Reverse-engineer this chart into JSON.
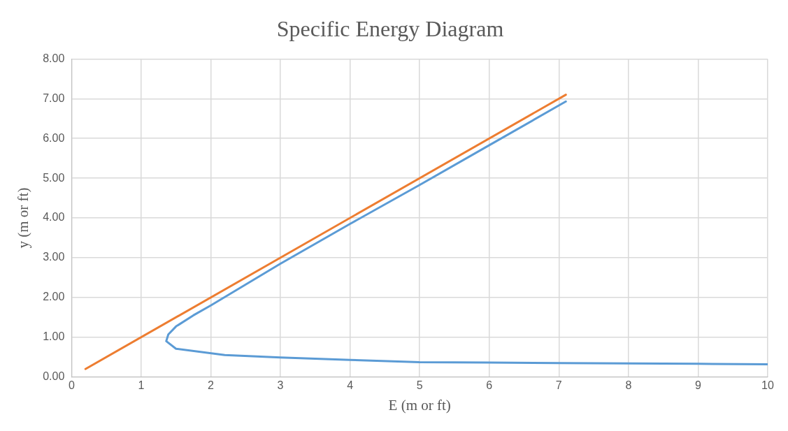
{
  "chart_data": {
    "type": "line",
    "title": "Specific Energy Diagram",
    "xlabel": "E (m or ft)",
    "ylabel": "y (m or ft)",
    "xlim": [
      0,
      10
    ],
    "xticks": [
      0,
      1,
      2,
      3,
      4,
      5,
      6,
      7,
      8,
      9,
      10
    ],
    "ylim": [
      0,
      8
    ],
    "yticks": [
      {
        "value": 0,
        "label": "0.00"
      },
      {
        "value": 1,
        "label": "1.00"
      },
      {
        "value": 2,
        "label": "2.00"
      },
      {
        "value": 3,
        "label": "3.00"
      },
      {
        "value": 4,
        "label": "4.00"
      },
      {
        "value": 5,
        "label": "5.00"
      },
      {
        "value": 6,
        "label": "6.00"
      },
      {
        "value": 7,
        "label": "7.00"
      },
      {
        "value": 8,
        "label": "8.00"
      }
    ],
    "grid": true,
    "legend": false,
    "marker": "none",
    "line_style": "solid",
    "series": [
      {
        "color": "#5b9bd5",
        "x": [
          10,
          9,
          8,
          7,
          6,
          5,
          4,
          3,
          2.2,
          1.5,
          1.36,
          1.39,
          1.5,
          1.75,
          2,
          3,
          4,
          5,
          6,
          7.1
        ],
        "values": [
          0.32,
          0.33,
          0.34,
          0.35,
          0.36,
          0.37,
          0.43,
          0.49,
          0.55,
          0.71,
          0.9,
          1.07,
          1.27,
          1.55,
          1.8,
          2.85,
          3.85,
          4.83,
          5.83,
          6.93
        ]
      },
      {
        "color": "#ed7d31",
        "x": [
          0.2,
          7.1
        ],
        "values": [
          0.2,
          7.1
        ]
      }
    ]
  }
}
